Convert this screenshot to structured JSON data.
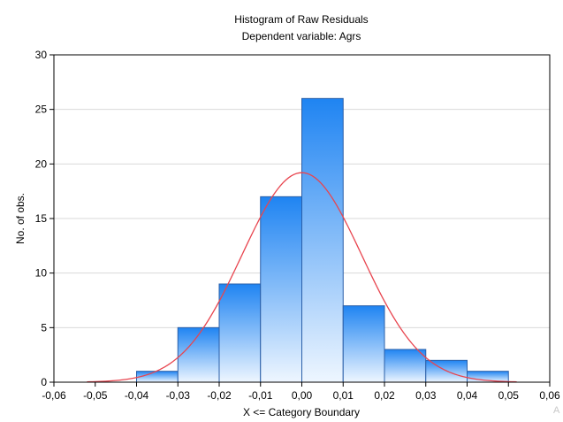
{
  "chart_data": {
    "type": "bar",
    "title": "Histogram of Raw Residuals",
    "subtitle": "Dependent variable: Agrs",
    "xlabel": "X <= Category Boundary",
    "ylabel": "No. of obs.",
    "xlim": [
      -0.06,
      0.06
    ],
    "ylim": [
      0,
      30
    ],
    "x_ticks": [
      "-0,06",
      "-0,05",
      "-0,04",
      "-0,03",
      "-0,02",
      "-0,01",
      "0,00",
      "0,01",
      "0,02",
      "0,03",
      "0,04",
      "0,05",
      "0,06"
    ],
    "x_tick_values": [
      -0.06,
      -0.05,
      -0.04,
      -0.03,
      -0.02,
      -0.01,
      0.0,
      0.01,
      0.02,
      0.03,
      0.04,
      0.05,
      0.06
    ],
    "y_ticks": [
      "0",
      "5",
      "10",
      "15",
      "20",
      "25",
      "30"
    ],
    "y_tick_values": [
      0,
      5,
      10,
      15,
      20,
      25,
      30
    ],
    "bins": [
      {
        "from": -0.04,
        "to": -0.03,
        "count": 1
      },
      {
        "from": -0.03,
        "to": -0.02,
        "count": 5
      },
      {
        "from": -0.02,
        "to": -0.01,
        "count": 9
      },
      {
        "from": -0.01,
        "to": 0.0,
        "count": 17
      },
      {
        "from": 0.0,
        "to": 0.01,
        "count": 26
      },
      {
        "from": 0.01,
        "to": 0.02,
        "count": 7
      },
      {
        "from": 0.02,
        "to": 0.03,
        "count": 3
      },
      {
        "from": 0.03,
        "to": 0.04,
        "count": 2
      },
      {
        "from": 0.04,
        "to": 0.05,
        "count": 1
      }
    ],
    "normal_curve": {
      "peak": 19.2,
      "mean": 0.0,
      "sd": 0.0145,
      "x_range": [
        -0.052,
        0.052
      ]
    },
    "grid": "horizontal",
    "legend": "none"
  },
  "colors": {
    "bar_top": "#1f84f2",
    "bar_bottom": "#eef6ff",
    "bar_border": "#2a5fa8",
    "curve": "#e8454f",
    "grid": "#d9d9d9",
    "axis": "#000000",
    "watermark": "#c8c8c8"
  },
  "watermark_text": "A"
}
